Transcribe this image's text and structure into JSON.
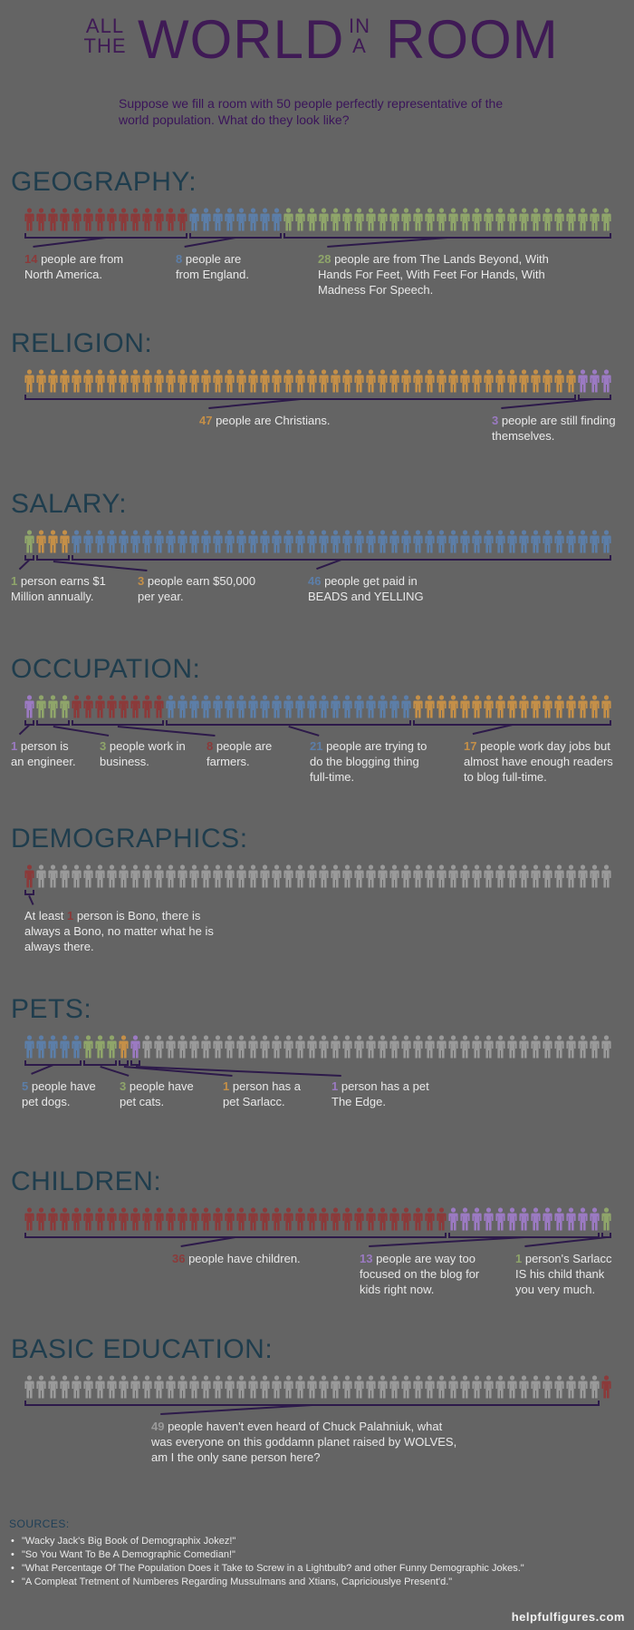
{
  "header": {
    "all": "ALL",
    "the": "THE",
    "world": "WORLD",
    "in": "IN",
    "a": "A",
    "room": "ROOM"
  },
  "intro": "Suppose we fill a room with 50 people perfectly representative of the world population. What do they look like?",
  "colors": {
    "red": "#8b3a3a",
    "blue": "#5c7ea8",
    "green": "#8fa56a",
    "orange": "#c48f48",
    "purple": "#9b7ac2",
    "gray": "#9a9a9a",
    "title": "#1f3d4d",
    "accent": "#3f1a55"
  },
  "sections": [
    {
      "id": "geography",
      "title": "GEOGRAPHY:",
      "groups": [
        {
          "count": 14,
          "color": "red"
        },
        {
          "count": 8,
          "color": "blue"
        },
        {
          "count": 28,
          "color": "green"
        }
      ],
      "captions": [
        {
          "number": "14",
          "color": "red",
          "text": " people are from North America."
        },
        {
          "number": "8",
          "color": "blue",
          "text": " people are from England."
        },
        {
          "number": "28",
          "color": "green",
          "text": " people are from The Lands Beyond, With Hands For Feet, With Feet For Hands, With Madness For Speech."
        }
      ]
    },
    {
      "id": "religion",
      "title": "RELIGION:",
      "groups": [
        {
          "count": 47,
          "color": "orange"
        },
        {
          "count": 3,
          "color": "purple"
        }
      ],
      "captions": [
        {
          "number": "47",
          "color": "orange",
          "text": " people are Christians."
        },
        {
          "number": "3",
          "color": "purple",
          "text": " people are still finding themselves."
        }
      ]
    },
    {
      "id": "salary",
      "title": "SALARY:",
      "groups": [
        {
          "count": 1,
          "color": "green"
        },
        {
          "count": 3,
          "color": "orange"
        },
        {
          "count": 46,
          "color": "blue"
        }
      ],
      "captions": [
        {
          "number": "1",
          "color": "green",
          "text": " person earns $1 Million annually."
        },
        {
          "number": "3",
          "color": "orange",
          "text": " people earn $50,000 per year."
        },
        {
          "number": "46",
          "color": "blue",
          "text": " people get paid in BEADS and YELLING"
        }
      ]
    },
    {
      "id": "occupation",
      "title": "OCCUPATION:",
      "groups": [
        {
          "count": 1,
          "color": "purple"
        },
        {
          "count": 3,
          "color": "green"
        },
        {
          "count": 8,
          "color": "red"
        },
        {
          "count": 21,
          "color": "blue"
        },
        {
          "count": 17,
          "color": "orange"
        }
      ],
      "captions": [
        {
          "number": "1",
          "color": "purple",
          "text": " person is an engineer."
        },
        {
          "number": "3",
          "color": "green",
          "text": " people work in business."
        },
        {
          "number": "8",
          "color": "red",
          "text": " people are farmers."
        },
        {
          "number": "21",
          "color": "blue",
          "text": " people are trying to do the blogging thing full-time."
        },
        {
          "number": "17",
          "color": "orange",
          "text": " people work day jobs but almost have enough readers to blog full-time."
        }
      ]
    },
    {
      "id": "demographics",
      "title": "DEMOGRAPHICS:",
      "groups": [
        {
          "count": 1,
          "color": "red"
        },
        {
          "count": 49,
          "color": "gray"
        }
      ],
      "captions": [
        {
          "prefix": "At least ",
          "number": "1",
          "color": "red",
          "text": " person is Bono, there is always a Bono, no matter what he is always there."
        }
      ]
    },
    {
      "id": "pets",
      "title": "PETS:",
      "groups": [
        {
          "count": 5,
          "color": "blue"
        },
        {
          "count": 3,
          "color": "green"
        },
        {
          "count": 1,
          "color": "orange"
        },
        {
          "count": 1,
          "color": "purple"
        },
        {
          "count": 40,
          "color": "gray"
        }
      ],
      "captions": [
        {
          "number": "5",
          "color": "blue",
          "text": " people have pet dogs."
        },
        {
          "number": "3",
          "color": "green",
          "text": " people have pet cats."
        },
        {
          "number": "1",
          "color": "orange",
          "text": " person has a pet Sarlacc."
        },
        {
          "number": "1",
          "color": "purple",
          "text": " person has a pet The Edge."
        }
      ]
    },
    {
      "id": "children",
      "title": "CHILDREN:",
      "groups": [
        {
          "count": 36,
          "color": "red"
        },
        {
          "count": 13,
          "color": "purple"
        },
        {
          "count": 1,
          "color": "green"
        }
      ],
      "captions": [
        {
          "number": "36",
          "color": "red",
          "text": " people have children."
        },
        {
          "number": "13",
          "color": "purple",
          "text": " people are way too focused on the blog for kids right now."
        },
        {
          "number": "1",
          "color": "green",
          "text": " person's Sarlacc IS his child thank you very much."
        }
      ]
    },
    {
      "id": "education",
      "title": "BASIC EDUCATION:",
      "groups": [
        {
          "count": 49,
          "color": "gray"
        },
        {
          "count": 1,
          "color": "red"
        }
      ],
      "captions": [
        {
          "number": "49",
          "color": "gray",
          "text": " people haven't even heard of Chuck Palahniuk, what was everyone on this goddamn planet raised by WOLVES, am I the only sane person here?"
        }
      ]
    }
  ],
  "sources": {
    "title": "SOURCES:",
    "items": [
      "\"Wacky Jack's Big Book of Demographix Jokez!\"",
      "\"So You Want To Be A Demographic Comedian!\"",
      "\"What Percentage Of The Population Does it Take to Screw in a Lightbulb? and other Funny Demographic Jokes.\"",
      "\"A Compleat Tretment of Numberes Regarding Mussulmans and Xtians, Capriciouslye Present'd.\""
    ]
  },
  "footer": "helpfulfigures.com"
}
